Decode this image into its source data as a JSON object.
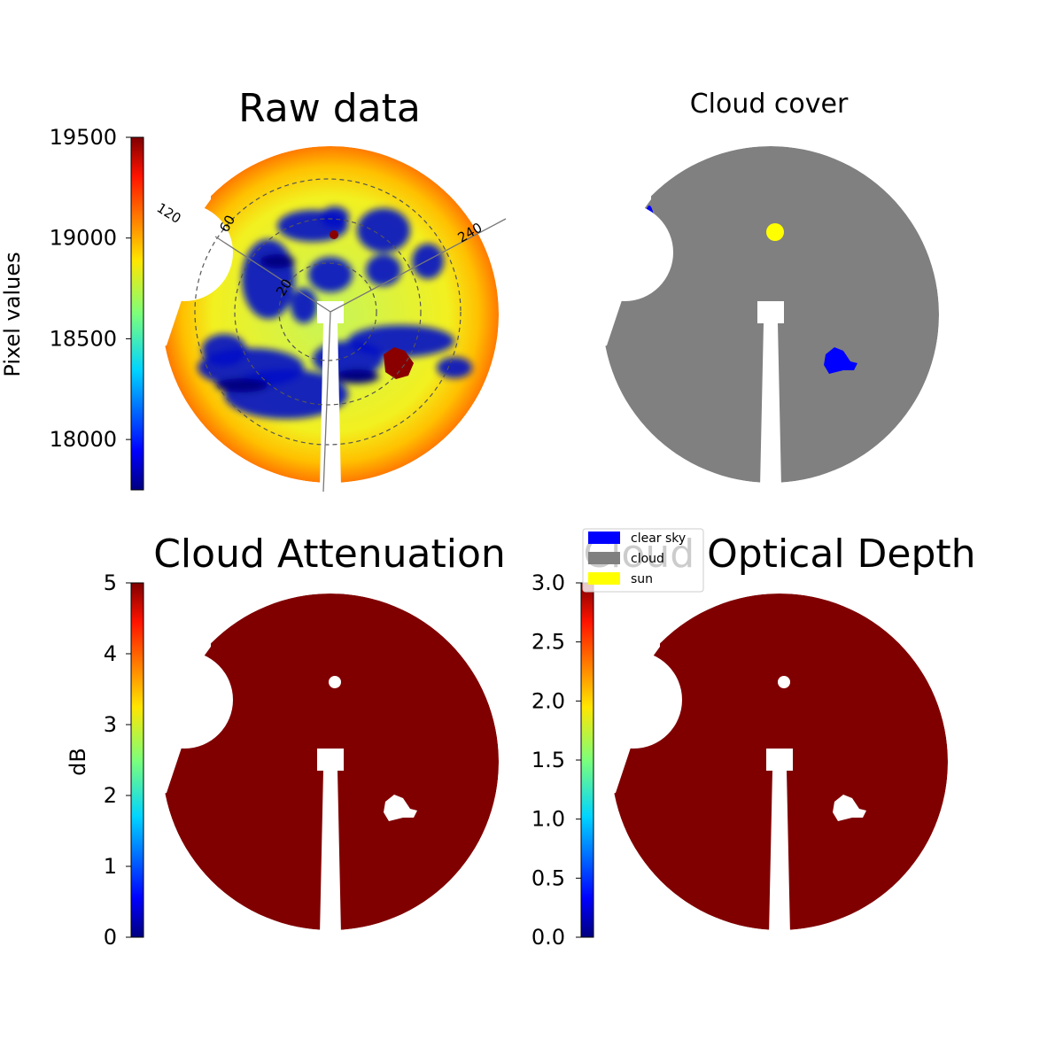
{
  "chart_data": [
    {
      "type": "image",
      "title": "Raw data",
      "colorbar": {
        "label": "Pixel values",
        "clim": [
          17750,
          19500
        ],
        "ticks": [
          18000,
          18500,
          19000,
          19500
        ]
      },
      "annotations": [
        "120",
        "60",
        "240",
        "20"
      ]
    },
    {
      "type": "image",
      "title": "Cloud cover",
      "series": [
        {
          "name": "clear sky",
          "color": "#0000ff"
        },
        {
          "name": "cloud",
          "color": "#808080"
        },
        {
          "name": "sun",
          "color": "#ffff00"
        }
      ]
    },
    {
      "type": "image",
      "title": "Cloud Attenuation",
      "colorbar": {
        "label": "dB",
        "clim": [
          0,
          5
        ],
        "ticks": [
          0,
          1,
          2,
          3,
          4,
          5
        ]
      }
    },
    {
      "type": "image",
      "title": "Cloud Optical Depth",
      "colorbar": {
        "clim": [
          0,
          3
        ],
        "ticks": [
          {
            "value": 0,
            "label": "0.0"
          },
          {
            "value": 0.5,
            "label": "0.5"
          },
          {
            "value": 1,
            "label": "1.0"
          },
          {
            "value": 1.5,
            "label": "1.5"
          },
          {
            "value": 2,
            "label": "2.0"
          },
          {
            "value": 2.5,
            "label": "2.5"
          },
          {
            "value": 3,
            "label": "3.0"
          }
        ]
      }
    }
  ]
}
